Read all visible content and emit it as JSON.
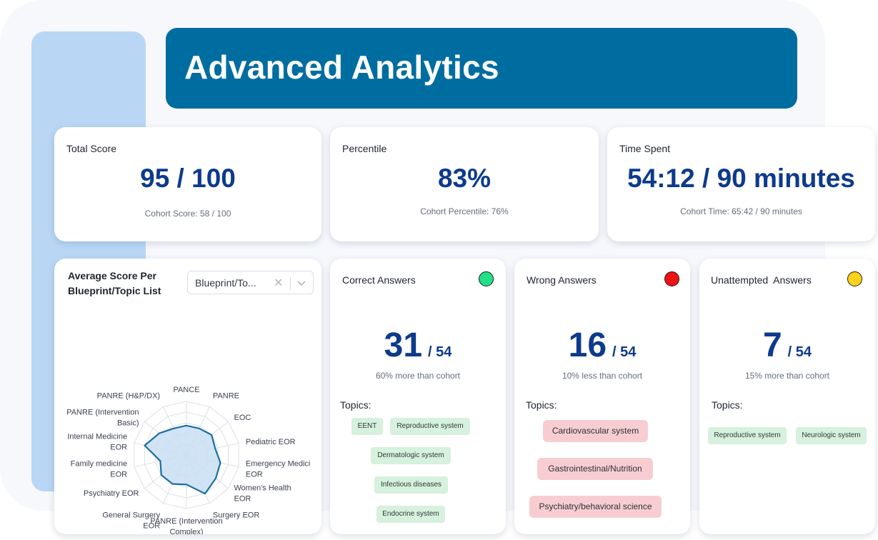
{
  "header": {
    "title": "Advanced Analytics"
  },
  "stats": {
    "total_score": {
      "label": "Total Score",
      "value": "95 / 100",
      "cohort": "Cohort Score: 58 / 100"
    },
    "percentile": {
      "label": "Percentile",
      "value": "83%",
      "cohort": "Cohort Percentile: 76%"
    },
    "time_spent": {
      "label": "Time Spent",
      "value": "54:12 / 90 minutes",
      "cohort": "Cohort Time: 65:42 / 90 minutes"
    }
  },
  "radar": {
    "title": "Average Score Per Blueprint/Topic List",
    "select": {
      "value": "Blueprint/To...",
      "clear_icon": "x-icon",
      "chevron_icon": "chevron-down-icon"
    },
    "chart_data": {
      "type": "radar",
      "grid": true,
      "rmax": 100,
      "categories": [
        "PANCE",
        "PANRE",
        "EOC",
        "Pediatric EOR",
        "Emergency Medicine EOR",
        "Women's Health EOR",
        "Surgery EOR",
        "PANRE (Intervention Complex)",
        "General Surgery EOR",
        "Psychiatry EOR",
        "Family medicine EOR",
        "Internal Medicine EOR",
        "PANRE (Intervention Basic)",
        "PANRE (H&P/DX)"
      ],
      "tick_labels": [
        [
          "PANCE"
        ],
        [
          "PANRE"
        ],
        [
          "EOC"
        ],
        [
          "Pediatric EOR"
        ],
        [
          "Emergency Medici",
          "EOR"
        ],
        [
          "Women's Health",
          "EOR"
        ],
        [
          "Surgery EOR"
        ],
        [
          "PANRE (Intervention",
          "Complex)"
        ],
        [
          "General Surgery",
          "EOR"
        ],
        [
          "Psychiatry EOR"
        ],
        [
          "Family medicine",
          "EOR"
        ],
        [
          "Internal Medicine",
          "EOR"
        ],
        [
          "PANRE (Intervention",
          "Basic)"
        ],
        [
          "PANRE (H&P/DX)"
        ]
      ],
      "series": [
        {
          "values": [
            55,
            55,
            60,
            55,
            65,
            70,
            80,
            55,
            60,
            60,
            50,
            80,
            65,
            55
          ],
          "color": "#1d6fa0",
          "fill": "#c9dff3"
        }
      ]
    }
  },
  "answers": {
    "correct": {
      "label": "Correct Answers",
      "count": "31",
      "total": "/ 54",
      "comparison": "60% more than cohort",
      "topics_label": "Topics:",
      "dot_color": "#22e088",
      "topics": [
        "EENT",
        "Reproductive system",
        "Dermatologic system",
        "Infectious diseases",
        "Endocrine system"
      ]
    },
    "wrong": {
      "label": "Wrong Answers",
      "count": "16",
      "total": "/ 54",
      "comparison": "10% less than cohort",
      "topics_label": "Topics:",
      "dot_color": "#ee1111",
      "topics": [
        "Cardiovascular system",
        "Gastrointestinal/Nutrition",
        "Psychiatry/behavioral science"
      ]
    },
    "unattempted": {
      "label": "Unattempted  Answers",
      "count": "7",
      "total": "/ 54",
      "comparison": "15% more than cohort",
      "topics_label": "Topics:",
      "dot_color": "#ffd21a",
      "topics": [
        "Reproductive system",
        "Neurologic system"
      ]
    }
  }
}
